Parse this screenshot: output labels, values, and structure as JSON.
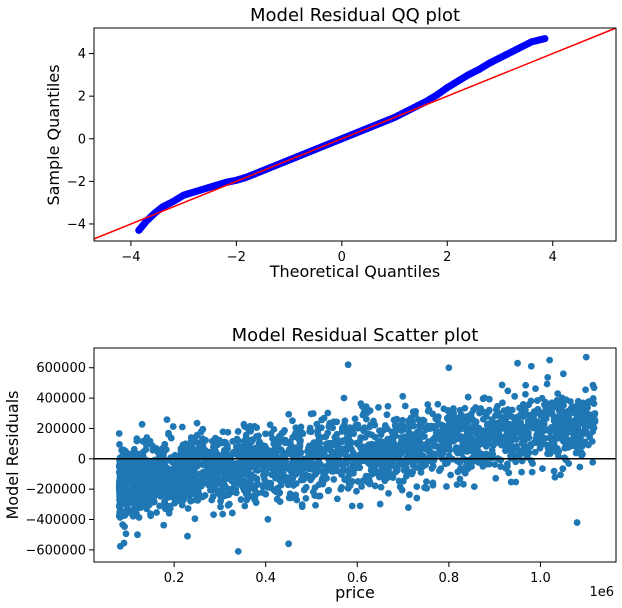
{
  "colors": {
    "qq_points": "#0000ff",
    "qq_line": "#ff0000",
    "scatter_points": "#1f77b4",
    "zero_line": "#000000",
    "axis": "#000000",
    "background": "#ffffff"
  },
  "chart_data": [
    {
      "type": "scatter",
      "title": "Model Residual QQ plot",
      "xlabel": "Theoretical Quantiles",
      "ylabel": "Sample Quantiles",
      "xlim": [
        -4.7,
        5.2
      ],
      "ylim": [
        -4.8,
        5.2
      ],
      "xticks": [
        -4,
        -2,
        0,
        2,
        4
      ],
      "xtick_labels": [
        "−4",
        "−2",
        "0",
        "2",
        "4"
      ],
      "yticks": [
        -4,
        -2,
        0,
        2,
        4
      ],
      "ytick_labels": [
        "−4",
        "−2",
        "0",
        "2",
        "4"
      ],
      "grid": false,
      "series": [
        {
          "kind": "points",
          "x": [
            -3.85,
            -3.7,
            -3.55,
            -3.4,
            -3.2,
            -3.0,
            -2.8,
            -2.6,
            -2.4,
            -2.2,
            -2.0,
            -1.8,
            -1.6,
            -1.4,
            -1.2,
            -1.0,
            -0.8,
            -0.6,
            -0.4,
            -0.2,
            0.0,
            0.2,
            0.4,
            0.6,
            0.8,
            1.0,
            1.2,
            1.4,
            1.6,
            1.8,
            2.0,
            2.2,
            2.4,
            2.6,
            2.8,
            3.0,
            3.2,
            3.4,
            3.6,
            3.85
          ],
          "y": [
            -4.3,
            -3.85,
            -3.5,
            -3.2,
            -2.95,
            -2.65,
            -2.5,
            -2.35,
            -2.2,
            -2.05,
            -1.95,
            -1.8,
            -1.6,
            -1.4,
            -1.2,
            -1.0,
            -0.8,
            -0.6,
            -0.4,
            -0.2,
            0.0,
            0.2,
            0.4,
            0.6,
            0.8,
            1.0,
            1.25,
            1.5,
            1.75,
            2.05,
            2.4,
            2.7,
            3.0,
            3.25,
            3.55,
            3.8,
            4.05,
            4.3,
            4.55,
            4.7
          ]
        },
        {
          "kind": "reference_line",
          "x": [
            -4.7,
            5.2
          ],
          "y": [
            -4.7,
            5.2
          ]
        }
      ]
    },
    {
      "type": "scatter",
      "title": "Model Residual Scatter plot",
      "xlabel": "price",
      "ylabel": "Model Residuals",
      "x_scale_label": "1e6",
      "xlim": [
        0.025,
        1.165
      ],
      "ylim": [
        -680000,
        730000
      ],
      "xticks": [
        0.2,
        0.4,
        0.6,
        0.8,
        1.0
      ],
      "xtick_labels": [
        "0.2",
        "0.4",
        "0.6",
        "0.8",
        "1.0"
      ],
      "yticks": [
        -600000,
        -400000,
        -200000,
        0,
        200000,
        400000,
        600000
      ],
      "ytick_labels": [
        "−600000",
        "−400000",
        "−200000",
        "0",
        "200000",
        "400000",
        "600000"
      ],
      "grid": false,
      "hline": 0,
      "point_cloud": {
        "x_range": [
          0.08,
          1.12
        ],
        "count": 2600,
        "residual_at_x_min": -160000,
        "residual_at_x_max": 230000,
        "spread": 120000
      },
      "outliers": {
        "x": [
          0.12,
          0.34,
          0.45,
          0.58,
          0.8,
          0.95,
          1.02,
          1.1,
          1.08,
          1.05,
          0.98,
          0.25,
          0.14
        ],
        "y": [
          -500000,
          -610000,
          -560000,
          620000,
          600000,
          630000,
          650000,
          670000,
          -420000,
          560000,
          610000,
          235000,
          -330000
        ]
      }
    }
  ]
}
